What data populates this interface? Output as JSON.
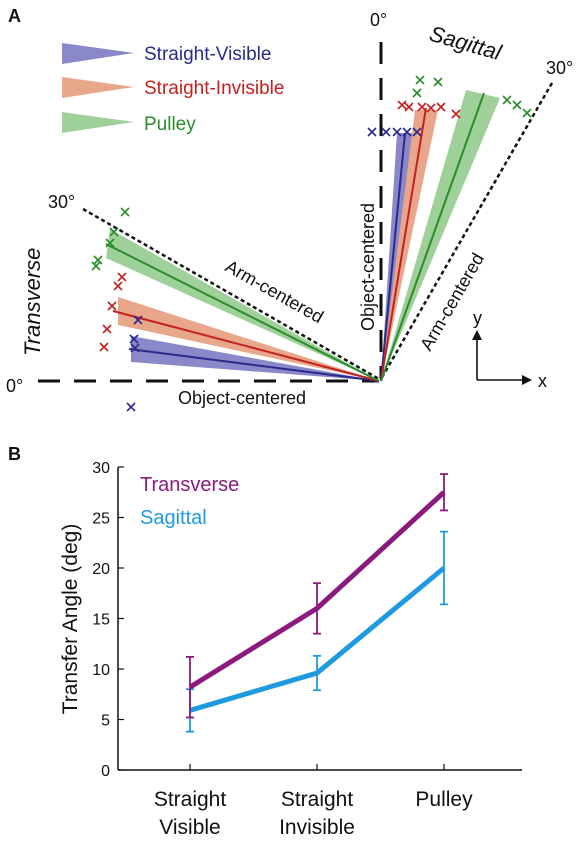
{
  "panel_a": {
    "letter": "A",
    "transverse_label": "Transverse",
    "sagittal_label": "Sagittal",
    "zero_deg_left": "0°",
    "zero_deg_top": "0°",
    "thirty_left": "30°",
    "thirty_right": "30°",
    "object_centered_h": "Object-centered",
    "object_centered_v": "Object-centered",
    "arm_centered_left": "Arm-centered",
    "arm_centered_right": "Arm-centered",
    "axis_x": "x",
    "axis_y": "y",
    "legend": [
      {
        "label": "Straight-Visible",
        "color": "#2a2a8c",
        "fill": "#8a88c8"
      },
      {
        "label": "Straight-Invisible",
        "color": "#c42020",
        "fill": "#e8a78a"
      },
      {
        "label": "Pulley",
        "color": "#2a8c2a",
        "fill": "#9fd09a"
      }
    ]
  },
  "chart_data": {
    "panel_letter": "B",
    "type": "line",
    "categories": [
      "Straight Visible",
      "Straight Invisible",
      "Pulley"
    ],
    "category_lines": [
      [
        "Straight",
        "Visible"
      ],
      [
        "Straight",
        "Invisible"
      ],
      [
        "Pulley"
      ]
    ],
    "ylabel": "Transfer Angle (deg)",
    "ylim": [
      0,
      30
    ],
    "yticks": [
      0,
      5,
      10,
      15,
      20,
      25,
      30
    ],
    "series": [
      {
        "name": "Transverse",
        "color": "#8b1a7e",
        "values": [
          8.2,
          16.0,
          27.5
        ],
        "errors": [
          3.0,
          2.5,
          1.8
        ]
      },
      {
        "name": "Sagittal",
        "color": "#1e9ae0",
        "values": [
          5.9,
          9.6,
          20.0
        ],
        "errors": [
          2.1,
          1.7,
          3.6
        ]
      }
    ]
  }
}
